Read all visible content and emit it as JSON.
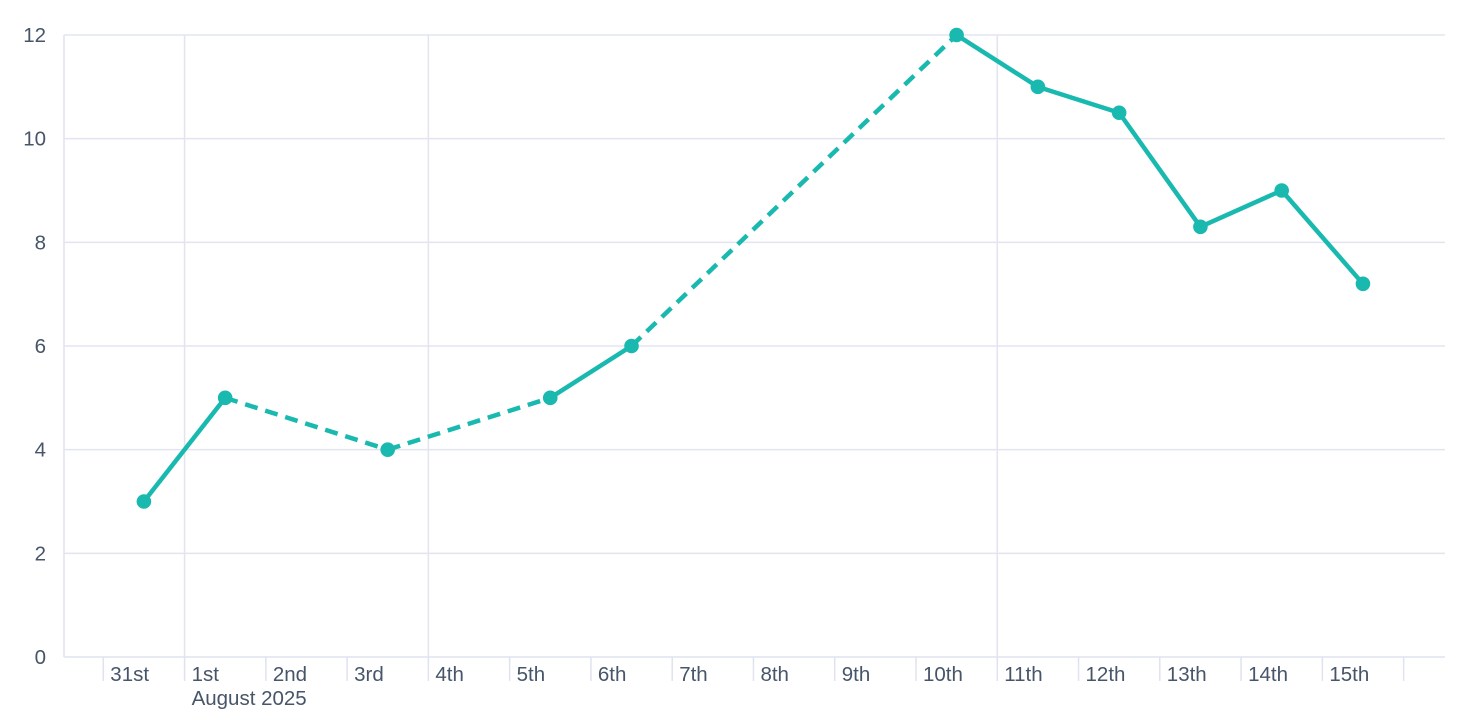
{
  "chart_data": {
    "type": "line",
    "title": "",
    "xlabel": "",
    "ylabel": "",
    "x_axis": {
      "tick_labels": [
        "31st",
        "1st",
        "2nd",
        "3rd",
        "4th",
        "5th",
        "6th",
        "7th",
        "8th",
        "9th",
        "10th",
        "11th",
        "12th",
        "13th",
        "14th",
        "15th"
      ],
      "month_label": "August 2025",
      "month_label_under": "1st",
      "num_day_slots": 16,
      "trailing_tick": true
    },
    "y_axis": {
      "min": 0,
      "max": 12,
      "ticks": [
        {
          "label": "0",
          "value": 0
        },
        {
          "label": "2",
          "value": 2
        },
        {
          "label": "4",
          "value": 4
        },
        {
          "label": "6",
          "value": 6
        },
        {
          "label": "8",
          "value": 8
        },
        {
          "label": "10",
          "value": 10
        },
        {
          "label": "12",
          "value": 12
        }
      ]
    },
    "series": [
      {
        "name": "daily-values",
        "points": [
          {
            "x_label": "31st",
            "day_index": 0,
            "value": 3
          },
          {
            "x_label": "1st",
            "day_index": 1,
            "value": 5
          },
          {
            "x_label": "3rd",
            "day_index": 3,
            "value": 4
          },
          {
            "x_label": "5th",
            "day_index": 5,
            "value": 5
          },
          {
            "x_label": "6th",
            "day_index": 6,
            "value": 6
          },
          {
            "x_label": "10th",
            "day_index": 10,
            "value": 12
          },
          {
            "x_label": "11th",
            "day_index": 11,
            "value": 11
          },
          {
            "x_label": "12th",
            "day_index": 12,
            "value": 10.5
          },
          {
            "x_label": "13th",
            "day_index": 13,
            "value": 8.3
          },
          {
            "x_label": "14th",
            "day_index": 14,
            "value": 9
          },
          {
            "x_label": "15th",
            "day_index": 15,
            "value": 7.2
          }
        ],
        "missing_days_bridged_with_dashes": [
          "2nd",
          "4th",
          "7th",
          "8th",
          "9th"
        ]
      }
    ],
    "gridlines": {
      "horizontal_at_values": [
        0,
        2,
        4,
        6,
        8,
        10,
        12
      ],
      "vertical_at_day_index": [
        1,
        4,
        11
      ],
      "left_border": true,
      "legend": "none"
    },
    "colors": {
      "line": "#1ab9b0",
      "marker": "#1ab9b0",
      "grid": "#e2e5f0",
      "axis": "#dfe3ef",
      "label": "#475569",
      "background": "#ffffff"
    }
  }
}
